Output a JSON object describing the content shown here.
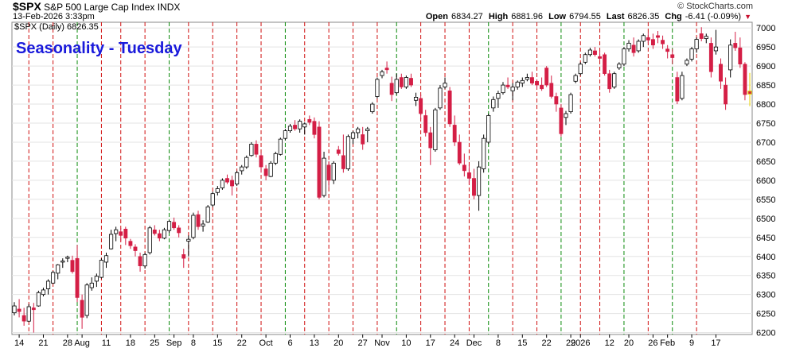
{
  "header": {
    "symbol": "$SPX",
    "name": "S&P 500 Large Cap Index",
    "exchange": "INDX",
    "datetime": "13-Feb-2026 3:33pm",
    "brand": "© StockCharts.com",
    "open_label": "Open",
    "open": "6834.27",
    "high_label": "High",
    "high": "6881.96",
    "low_label": "Low",
    "low": "6794.55",
    "last_label": "Last",
    "last": "6826.35",
    "chg_label": "Chg",
    "chg": "-6.41 (-0.09%)",
    "chg_icon": "down-triangle-icon",
    "series_label": "$SPX (Daily) 6826.35",
    "overlay_title": "Seasonality - Tuesday"
  },
  "chart_data": {
    "type": "candlestick",
    "title": "Seasonality - Tuesday",
    "ylim": [
      6195,
      7015
    ],
    "y_ticks": [
      6200,
      6250,
      6300,
      6350,
      6400,
      6450,
      6500,
      6550,
      6600,
      6650,
      6700,
      6750,
      6800,
      6850,
      6900,
      6950,
      7000
    ],
    "x_ticks": [
      "14",
      "21",
      "28",
      "Aug",
      "11",
      "18",
      "25",
      "Sep",
      "8",
      "15",
      "22",
      "Oct",
      "6",
      "13",
      "20",
      "27",
      "Nov",
      "10",
      "17",
      "24",
      "Dec",
      "8",
      "15",
      "22",
      "29",
      "2026",
      "12",
      "20",
      "26",
      "Feb",
      "9",
      "17"
    ],
    "x_tick_bar_index": [
      1,
      6,
      11,
      14,
      19,
      24,
      29,
      33,
      37,
      42,
      47,
      52,
      57,
      62,
      67,
      72,
      76,
      81,
      86,
      91,
      95,
      100,
      105,
      110,
      115,
      117,
      123,
      127,
      132,
      135,
      140,
      145
    ],
    "tuesday_lines": {
      "description": "vertical markers on Tuesdays (first of month green, others red)",
      "bar_index": [
        3,
        8,
        13,
        18,
        22,
        27,
        32,
        36,
        41,
        46,
        51,
        56,
        60,
        65,
        70,
        75,
        79,
        84,
        89,
        94,
        98,
        103,
        108,
        113,
        117,
        121,
        126,
        131,
        136,
        141
      ],
      "colors": [
        "red",
        "red",
        "green",
        "red",
        "red",
        "red",
        "green",
        "red",
        "red",
        "red",
        "red",
        "green",
        "red",
        "red",
        "red",
        "red",
        "green",
        "red",
        "red",
        "red",
        "green",
        "red",
        "red",
        "green",
        "red",
        "red",
        "green",
        "red",
        "green",
        "red"
      ]
    },
    "colors": {
      "down": "#d41e45",
      "up": "#000000",
      "highlight": "#e8d000",
      "tuesday_green": "#0a8a0a",
      "tuesday_red": "#d01010"
    },
    "ohlc": [
      [
        6252,
        6280,
        6245,
        6270
      ],
      [
        6262,
        6288,
        6240,
        6255
      ],
      [
        6245,
        6265,
        6218,
        6230
      ],
      [
        6230,
        6275,
        6228,
        6268
      ],
      [
        6265,
        6278,
        6200,
        6260
      ],
      [
        6270,
        6310,
        6268,
        6305
      ],
      [
        6300,
        6318,
        6295,
        6312
      ],
      [
        6315,
        6340,
        6300,
        6335
      ],
      [
        6330,
        6362,
        6328,
        6358
      ],
      [
        6356,
        6380,
        6340,
        6378
      ],
      [
        6385,
        6395,
        6370,
        6388
      ],
      [
        6395,
        6402,
        6385,
        6398
      ],
      [
        6390,
        6402,
        6355,
        6360
      ],
      [
        6395,
        6430,
        6280,
        6292
      ],
      [
        6285,
        6300,
        6210,
        6240
      ],
      [
        6245,
        6330,
        6238,
        6325
      ],
      [
        6318,
        6345,
        6310,
        6330
      ],
      [
        6335,
        6355,
        6320,
        6348
      ],
      [
        6345,
        6395,
        6342,
        6390
      ],
      [
        6385,
        6410,
        6370,
        6402
      ],
      [
        6420,
        6470,
        6418,
        6458
      ],
      [
        6460,
        6478,
        6440,
        6470
      ],
      [
        6465,
        6475,
        6440,
        6455
      ],
      [
        6472,
        6478,
        6430,
        6448
      ],
      [
        6440,
        6446,
        6420,
        6428
      ],
      [
        6425,
        6432,
        6400,
        6415
      ],
      [
        6400,
        6410,
        6360,
        6375
      ],
      [
        6375,
        6410,
        6368,
        6405
      ],
      [
        6410,
        6480,
        6405,
        6475
      ],
      [
        6470,
        6482,
        6455,
        6460
      ],
      [
        6460,
        6470,
        6440,
        6448
      ],
      [
        6448,
        6475,
        6445,
        6470
      ],
      [
        6468,
        6495,
        6462,
        6492
      ],
      [
        6490,
        6502,
        6470,
        6475
      ],
      [
        6475,
        6482,
        6450,
        6462
      ],
      [
        6405,
        6420,
        6370,
        6395
      ],
      [
        6440,
        6455,
        6400,
        6445
      ],
      [
        6450,
        6515,
        6445,
        6508
      ],
      [
        6510,
        6520,
        6470,
        6478
      ],
      [
        6480,
        6495,
        6465,
        6485
      ],
      [
        6490,
        6535,
        6488,
        6530
      ],
      [
        6535,
        6570,
        6530,
        6565
      ],
      [
        6568,
        6585,
        6560,
        6578
      ],
      [
        6580,
        6605,
        6575,
        6600
      ],
      [
        6605,
        6615,
        6590,
        6595
      ],
      [
        6600,
        6612,
        6560,
        6585
      ],
      [
        6590,
        6625,
        6585,
        6620
      ],
      [
        6625,
        6640,
        6615,
        6635
      ],
      [
        6635,
        6665,
        6630,
        6660
      ],
      [
        6665,
        6700,
        6662,
        6695
      ],
      [
        6695,
        6705,
        6660,
        6668
      ],
      [
        6665,
        6672,
        6620,
        6635
      ],
      [
        6630,
        6640,
        6600,
        6612
      ],
      [
        6610,
        6650,
        6608,
        6645
      ],
      [
        6645,
        6675,
        6640,
        6670
      ],
      [
        6668,
        6712,
        6665,
        6708
      ],
      [
        6710,
        6735,
        6705,
        6730
      ],
      [
        6730,
        6748,
        6725,
        6742
      ],
      [
        6745,
        6758,
        6730,
        6735
      ],
      [
        6735,
        6760,
        6725,
        6755
      ],
      [
        6740,
        6752,
        6720,
        6748
      ],
      [
        6760,
        6770,
        6745,
        6752
      ],
      [
        6755,
        6765,
        6710,
        6720
      ],
      [
        6740,
        6755,
        6550,
        6555
      ],
      [
        6560,
        6675,
        6555,
        6658
      ],
      [
        6640,
        6650,
        6580,
        6600
      ],
      [
        6600,
        6650,
        6590,
        6645
      ],
      [
        6680,
        6690,
        6665,
        6670
      ],
      [
        6665,
        6720,
        6620,
        6630
      ],
      [
        6630,
        6720,
        6625,
        6715
      ],
      [
        6710,
        6730,
        6695,
        6725
      ],
      [
        6725,
        6740,
        6710,
        6735
      ],
      [
        6720,
        6740,
        6680,
        6695
      ],
      [
        6730,
        6740,
        6700,
        6735
      ],
      [
        6780,
        6805,
        6775,
        6800
      ],
      [
        6820,
        6870,
        6815,
        6865
      ],
      [
        6875,
        6890,
        6868,
        6885
      ],
      [
        6895,
        6912,
        6880,
        6890
      ],
      [
        6855,
        6872,
        6808,
        6825
      ],
      [
        6830,
        6880,
        6825,
        6865
      ],
      [
        6870,
        6880,
        6840,
        6845
      ],
      [
        6845,
        6875,
        6840,
        6870
      ],
      [
        6868,
        6880,
        6845,
        6850
      ],
      [
        6810,
        6830,
        6795,
        6818
      ],
      [
        6815,
        6825,
        6760,
        6775
      ],
      [
        6770,
        6785,
        6715,
        6725
      ],
      [
        6725,
        6740,
        6640,
        6685
      ],
      [
        6680,
        6790,
        6675,
        6785
      ],
      [
        6790,
        6850,
        6785,
        6842
      ],
      [
        6845,
        6870,
        6840,
        6855
      ],
      [
        6835,
        6845,
        6740,
        6748
      ],
      [
        6745,
        6770,
        6690,
        6700
      ],
      [
        6700,
        6720,
        6640,
        6645
      ],
      [
        6640,
        6670,
        6610,
        6625
      ],
      [
        6620,
        6640,
        6590,
        6605
      ],
      [
        6605,
        6630,
        6550,
        6560
      ],
      [
        6560,
        6650,
        6520,
        6635
      ],
      [
        6630,
        6720,
        6620,
        6710
      ],
      [
        6700,
        6775,
        6695,
        6770
      ],
      [
        6790,
        6820,
        6780,
        6812
      ],
      [
        6815,
        6835,
        6790,
        6828
      ],
      [
        6830,
        6858,
        6825,
        6850
      ],
      [
        6850,
        6870,
        6840,
        6845
      ],
      [
        6835,
        6855,
        6810,
        6845
      ],
      [
        6845,
        6862,
        6838,
        6858
      ],
      [
        6855,
        6870,
        6845,
        6862
      ],
      [
        6865,
        6880,
        6860,
        6870
      ],
      [
        6870,
        6885,
        6850,
        6855
      ],
      [
        6860,
        6865,
        6840,
        6850
      ],
      [
        6850,
        6870,
        6835,
        6840
      ],
      [
        6895,
        6900,
        6845,
        6850
      ],
      [
        6855,
        6875,
        6815,
        6820
      ],
      [
        6820,
        6830,
        6780,
        6800
      ],
      [
        6790,
        6800,
        6715,
        6722
      ],
      [
        6765,
        6782,
        6745,
        6775
      ],
      [
        6780,
        6830,
        6775,
        6825
      ],
      [
        6860,
        6880,
        6855,
        6875
      ],
      [
        6880,
        6910,
        6875,
        6905
      ],
      [
        6910,
        6935,
        6905,
        6930
      ],
      [
        6930,
        6948,
        6925,
        6942
      ],
      [
        6940,
        6950,
        6925,
        6930
      ],
      [
        6925,
        6940,
        6915,
        6920
      ],
      [
        6930,
        6935,
        6875,
        6880
      ],
      [
        6880,
        6890,
        6830,
        6840
      ],
      [
        6845,
        6885,
        6840,
        6880
      ],
      [
        6895,
        6910,
        6890,
        6905
      ],
      [
        6905,
        6950,
        6900,
        6945
      ],
      [
        6945,
        6968,
        6938,
        6960
      ],
      [
        6955,
        6975,
        6925,
        6935
      ],
      [
        6940,
        6970,
        6935,
        6965
      ],
      [
        6965,
        6985,
        6950,
        6980
      ],
      [
        6975,
        6988,
        6960,
        6968
      ],
      [
        6970,
        6985,
        6945,
        6955
      ],
      [
        6980,
        6992,
        6960,
        6975
      ],
      [
        6968,
        6980,
        6945,
        6958
      ],
      [
        6945,
        6955,
        6920,
        6938
      ],
      [
        6930,
        6945,
        6905,
        6922
      ],
      [
        6870,
        6885,
        6800,
        6808
      ],
      [
        6815,
        6885,
        6810,
        6875
      ],
      [
        6905,
        6920,
        6900,
        6915
      ],
      [
        6918,
        6950,
        6912,
        6945
      ],
      [
        6945,
        6975,
        6935,
        6970
      ],
      [
        6985,
        7002,
        6965,
        6972
      ],
      [
        6972,
        6985,
        6960,
        6978
      ],
      [
        6960,
        6975,
        6870,
        6885
      ],
      [
        6940,
        6995,
        6930,
        6950
      ],
      [
        6905,
        6920,
        6840,
        6860
      ],
      [
        6850,
        6870,
        6785,
        6800
      ],
      [
        6890,
        6970,
        6870,
        6955
      ],
      [
        6960,
        6990,
        6940,
        6948
      ],
      [
        6948,
        6975,
        6895,
        6905
      ],
      [
        6905,
        6910,
        6810,
        6825
      ],
      [
        6834.27,
        6881.96,
        6794.55,
        6826.35
      ]
    ]
  }
}
